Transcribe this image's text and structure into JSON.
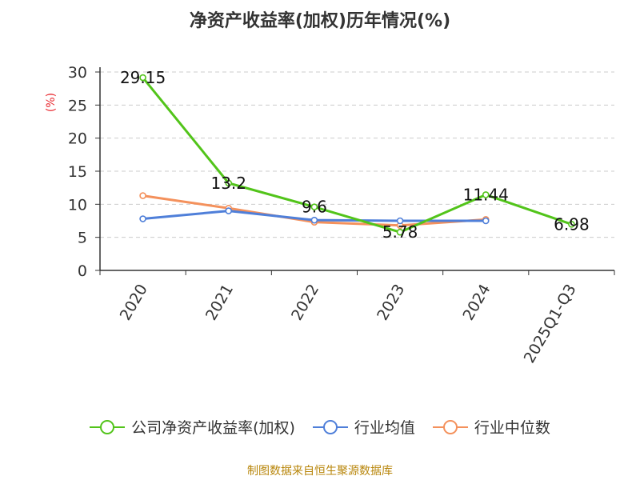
{
  "chart_data": {
    "type": "line",
    "title": "净资产收益率(加权)历年情况(%)",
    "ylabel": "(%)",
    "xlabel": "",
    "categories": [
      "2020",
      "2021",
      "2022",
      "2023",
      "2024",
      "2025Q1-Q3"
    ],
    "yticks": [
      0,
      5,
      10,
      15,
      20,
      25,
      30
    ],
    "ylim": [
      0,
      30
    ],
    "grid": "horizontal-dashed",
    "legend_position": "bottom",
    "series": [
      {
        "name": "公司净资产收益率(加权)",
        "color": "#52c41a",
        "values": [
          29.15,
          13.2,
          9.6,
          5.78,
          11.44,
          6.98
        ],
        "labels": [
          "29.15",
          "13.2",
          "9.6",
          "5.78",
          "11.44",
          "6.98"
        ]
      },
      {
        "name": "行业均值",
        "color": "#4f7fd9",
        "values": [
          7.8,
          9.0,
          7.6,
          7.5,
          7.5,
          null
        ]
      },
      {
        "name": "行业中位数",
        "color": "#f4915c",
        "values": [
          11.3,
          9.4,
          7.3,
          6.8,
          7.7,
          null
        ]
      }
    ]
  },
  "source_note": "制图数据来自恒生聚源数据库"
}
